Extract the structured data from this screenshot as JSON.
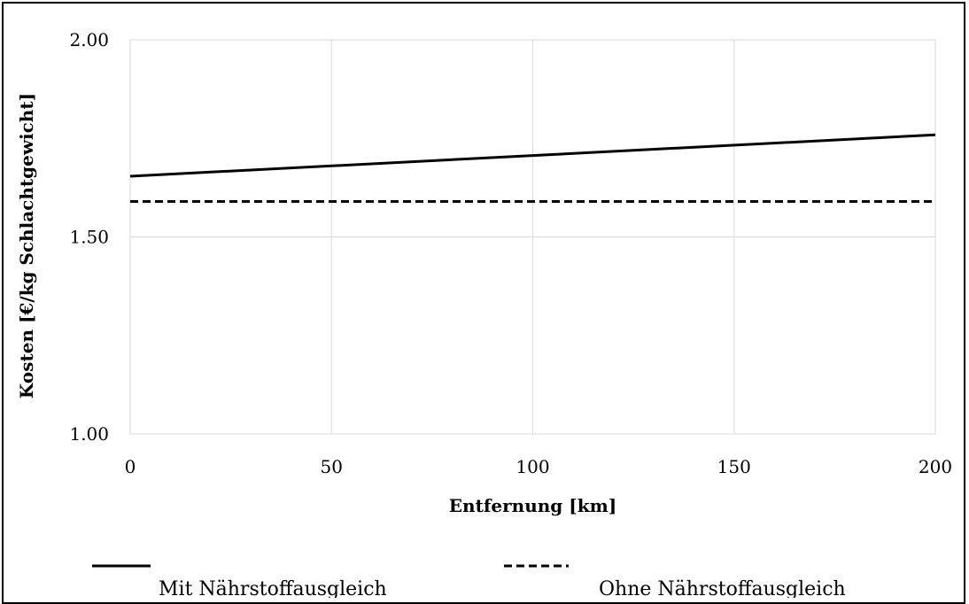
{
  "chart_data": {
    "type": "line",
    "title": "",
    "xlabel": "Entfernung [km]",
    "ylabel": "Kosten [€/kg Schlachtgewicht]",
    "xlim": [
      0,
      200
    ],
    "ylim": [
      1.0,
      2.0
    ],
    "x_ticks": [
      "0",
      "50",
      "100",
      "150",
      "200"
    ],
    "y_ticks": [
      "1.00",
      "1.50",
      "2.00"
    ],
    "grid": true,
    "legend_position": "bottom",
    "series": [
      {
        "name": "Mit Nährstoffausgleich",
        "style": "solid",
        "color": "#000000",
        "x": [
          0,
          200
        ],
        "y": [
          1.654,
          1.759
        ]
      },
      {
        "name": "Ohne Nährstoffausgleich",
        "style": "dashed",
        "color": "#000000",
        "x": [
          0,
          200
        ],
        "y": [
          1.59,
          1.59
        ]
      }
    ]
  }
}
